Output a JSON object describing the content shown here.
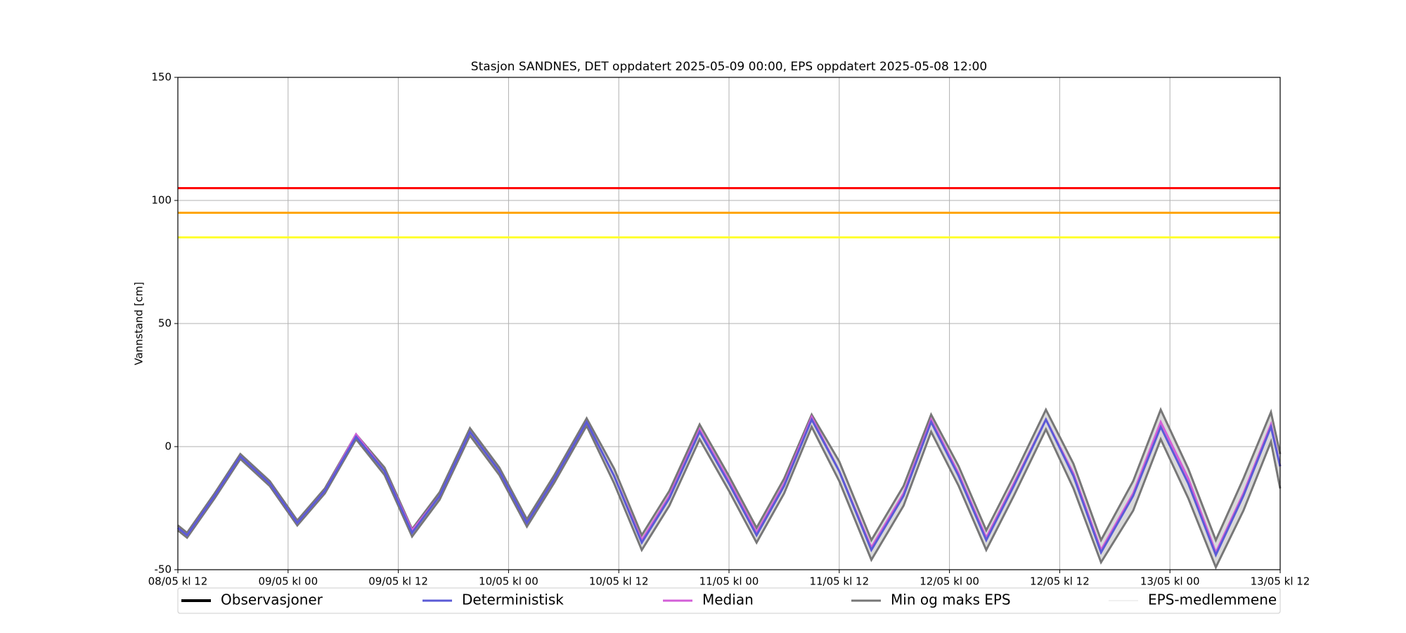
{
  "chart_data": {
    "type": "line",
    "title": "Stasjon SANDNES, DET oppdatert 2025-05-09 00:00, EPS oppdatert 2025-05-08 12:00",
    "y_label": "Vannstand [cm]",
    "x": [
      0,
      1,
      4,
      6.8,
      10,
      13,
      16,
      19.4,
      22.5,
      25.5,
      28.5,
      31.8,
      35,
      38,
      41,
      44.5,
      47.5,
      50.5,
      53.5,
      56.8,
      60,
      63,
      66,
      69,
      72,
      75.5,
      79,
      82,
      85,
      88,
      91,
      94.5,
      97.5,
      100.5,
      104,
      107,
      110,
      113,
      116,
      119,
      120
    ],
    "xlim": [
      0,
      120
    ],
    "xticks": [
      {
        "value": 0,
        "label": "08/05 kl 12"
      },
      {
        "value": 12,
        "label": "09/05 kl 00"
      },
      {
        "value": 24,
        "label": "09/05 kl 12"
      },
      {
        "value": 36,
        "label": "10/05 kl 00"
      },
      {
        "value": 48,
        "label": "10/05 kl 12"
      },
      {
        "value": 60,
        "label": "11/05 kl 00"
      },
      {
        "value": 72,
        "label": "11/05 kl 12"
      },
      {
        "value": 84,
        "label": "12/05 kl 00"
      },
      {
        "value": 96,
        "label": "12/05 kl 12"
      },
      {
        "value": 108,
        "label": "13/05 kl 00"
      },
      {
        "value": 120,
        "label": "13/05 kl 12"
      }
    ],
    "ylim": [
      -50,
      150
    ],
    "yticks": [
      -50,
      0,
      50,
      100,
      150
    ],
    "grid": true,
    "thresholds": [
      {
        "value": 105,
        "color": "#ff0000"
      },
      {
        "value": 95,
        "color": "#ffa500"
      },
      {
        "value": 85,
        "color": "#ffff33"
      }
    ],
    "envelope": {
      "name": "Min og maks EPS",
      "color": "#777777",
      "fill": "#d9d9d9",
      "max": [
        -32,
        -35,
        -19,
        -3,
        -14,
        -30,
        -17,
        5,
        -8.5,
        -33.5,
        -18.5,
        7.5,
        -8.5,
        -29.5,
        -11.5,
        11.5,
        -9,
        -36,
        -18,
        9,
        -12,
        -33,
        -13,
        13,
        -6,
        -38,
        -16,
        13,
        -8,
        -34,
        -12,
        15,
        -7,
        -38,
        -14,
        15,
        -9,
        -38,
        -13,
        14,
        -3
      ],
      "min": [
        -34,
        -37,
        -21,
        -5,
        -16,
        -32,
        -19,
        3,
        -11.5,
        -36.5,
        -21.5,
        4.5,
        -11.5,
        -32.5,
        -14.5,
        8.5,
        -15,
        -42,
        -24,
        3,
        -18,
        -39,
        -19,
        8,
        -14,
        -46,
        -24,
        6,
        -16,
        -42,
        -20,
        7,
        -17,
        -47,
        -26,
        3,
        -21,
        -49,
        -26,
        2,
        -17
      ]
    },
    "series": [
      {
        "name": "Median",
        "color": "#d35fd8",
        "values": [
          -33,
          -36,
          -20,
          -4,
          -15,
          -31,
          -18,
          5,
          -10,
          -34,
          -20,
          6,
          -10,
          -31,
          -13,
          10,
          -12,
          -38,
          -20,
          7,
          -14,
          -35,
          -15,
          12,
          -10,
          -41,
          -19,
          11,
          -11,
          -37,
          -15,
          11,
          -11,
          -42,
          -19,
          10,
          -13,
          -43,
          -19,
          9,
          -8
        ]
      },
      {
        "name": "Deterministisk",
        "color": "#5b5bd6",
        "values": [
          -33,
          -36,
          -20,
          -4,
          -15,
          -31,
          -18,
          4,
          -10,
          -35,
          -20,
          6,
          -10,
          -31,
          -13,
          10,
          -12,
          -39,
          -21,
          6,
          -15,
          -36,
          -16,
          11,
          -10,
          -42,
          -20,
          10,
          -12,
          -38,
          -16,
          11,
          -12,
          -43,
          -20,
          8,
          -15,
          -44,
          -20,
          8,
          -8
        ]
      }
    ],
    "legend_only": [
      {
        "name": "Observasjoner",
        "color": "#000000"
      },
      {
        "name": "EPS-medlemmene",
        "color": "#e0e0e0"
      }
    ]
  }
}
